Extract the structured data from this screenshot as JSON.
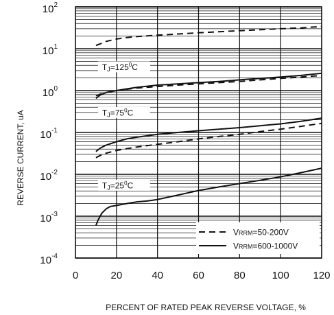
{
  "chart_data": {
    "type": "line",
    "title": "",
    "xlabel": "PERCENT OF RATED PEAK REVERSE VOLTAGE, %",
    "ylabel": "REVERSE CURRENT, uA",
    "xlim": [
      0,
      120
    ],
    "ylim": [
      0.0001,
      100
    ],
    "y_scale": "log",
    "grid": true,
    "x_ticks": [
      "0",
      "20",
      "40",
      "60",
      "80",
      "100",
      "120"
    ],
    "y_ticks": [
      {
        "base": "10",
        "exp": "2"
      },
      {
        "base": "10",
        "exp": "1"
      },
      {
        "base": "10",
        "exp": "0"
      },
      {
        "base": "10",
        "exp": "-1"
      },
      {
        "base": "10",
        "exp": "-2"
      },
      {
        "base": "10",
        "exp": "-3"
      },
      {
        "base": "10",
        "exp": "-4"
      }
    ],
    "legend": {
      "placement": "bottom-right",
      "entries": [
        {
          "style": "dashed",
          "prefix": "V",
          "sub": "RRM",
          "suffix": "=50-200V"
        },
        {
          "style": "solid",
          "prefix": "V",
          "sub": "RRM",
          "suffix": "=600-1000V"
        }
      ]
    },
    "annotations": [
      {
        "prefix": "T",
        "sub": "J",
        "text": "=125",
        "sup": "0",
        "unit": "C",
        "at_x": 11,
        "at_y": 3.7
      },
      {
        "prefix": "T",
        "sub": "J",
        "text": "=75",
        "sup": "0",
        "unit": "C",
        "at_x": 11,
        "at_y": 0.3
      },
      {
        "prefix": "T",
        "sub": "J",
        "text": "=25",
        "sup": "0",
        "unit": "C",
        "at_x": 11,
        "at_y": 0.0055
      }
    ],
    "series": [
      {
        "group": "TJ=125°C",
        "style": "dashed",
        "x": [
          10,
          12,
          15,
          20,
          25,
          30,
          40,
          50,
          60,
          70,
          80,
          90,
          100,
          110,
          120
        ],
        "y": [
          12,
          13,
          15,
          17,
          18.5,
          19.5,
          21,
          22.5,
          24,
          25.5,
          27,
          28.5,
          30,
          31.5,
          34
        ]
      },
      {
        "group": "TJ=125°C",
        "style": "dashed",
        "x": [
          10,
          12,
          15,
          20,
          25,
          30,
          40,
          50,
          60,
          70,
          80,
          90,
          100,
          110,
          120
        ],
        "y": [
          0.75,
          0.82,
          0.9,
          1.0,
          1.08,
          1.15,
          1.25,
          1.35,
          1.45,
          1.55,
          1.65,
          1.8,
          1.95,
          2.1,
          2.3
        ]
      },
      {
        "group": "TJ=125°C",
        "style": "solid",
        "x": [
          10,
          12,
          15,
          20,
          25,
          30,
          40,
          50,
          60,
          70,
          80,
          90,
          100,
          110,
          120
        ],
        "y": [
          0.65,
          0.78,
          0.9,
          1.0,
          1.1,
          1.2,
          1.35,
          1.45,
          1.55,
          1.65,
          1.8,
          1.95,
          2.1,
          2.3,
          2.6
        ]
      },
      {
        "group": "TJ=75°C",
        "style": "dashed",
        "x": [
          10,
          12,
          15,
          20,
          25,
          30,
          40,
          50,
          60,
          70,
          80,
          90,
          100,
          110,
          120
        ],
        "y": [
          0.025,
          0.028,
          0.032,
          0.037,
          0.041,
          0.045,
          0.052,
          0.06,
          0.07,
          0.08,
          0.09,
          0.105,
          0.12,
          0.14,
          0.165
        ]
      },
      {
        "group": "TJ=75°C",
        "style": "solid",
        "x": [
          10,
          12,
          15,
          20,
          25,
          30,
          40,
          50,
          60,
          70,
          80,
          90,
          100,
          110,
          120
        ],
        "y": [
          0.035,
          0.042,
          0.05,
          0.06,
          0.07,
          0.077,
          0.09,
          0.1,
          0.11,
          0.12,
          0.13,
          0.145,
          0.16,
          0.185,
          0.22
        ]
      },
      {
        "group": "TJ=25°C",
        "style": "solid",
        "x": [
          10,
          11,
          12,
          13,
          15,
          17,
          20,
          25,
          30,
          35,
          40,
          50,
          60,
          70,
          80,
          90,
          100,
          110,
          120
        ],
        "y": [
          0.0006,
          0.0008,
          0.001,
          0.0012,
          0.0015,
          0.0017,
          0.0018,
          0.002,
          0.0022,
          0.0023,
          0.0025,
          0.0032,
          0.0041,
          0.005,
          0.006,
          0.0072,
          0.0087,
          0.011,
          0.014
        ]
      }
    ]
  }
}
